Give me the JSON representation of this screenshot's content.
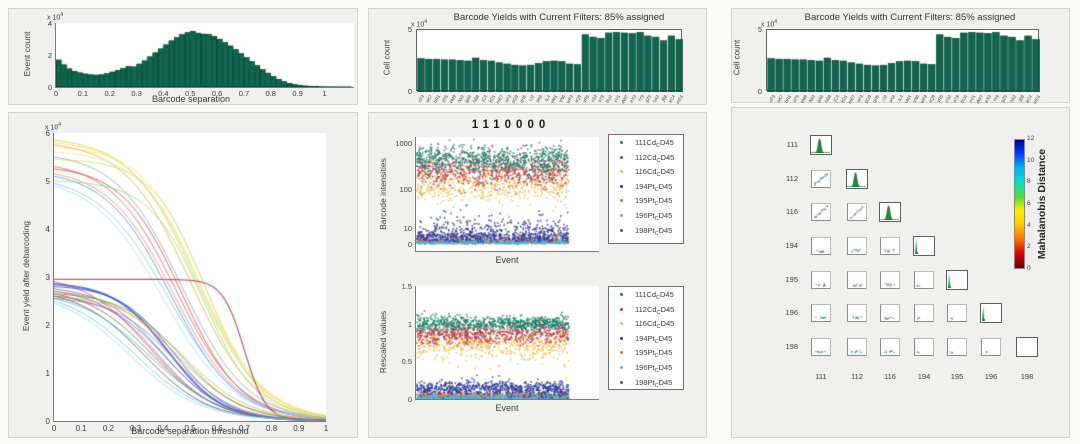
{
  "window": {
    "bg": "#fafaf8",
    "panel_bg": "#f0f0ee",
    "panel_border": "#d2d2cf",
    "bar_color": "#0e6550",
    "bar_edge": "#06352a",
    "text_color": "#3b3b3b"
  },
  "panels": {
    "separation_hist": {
      "ylabel": "Event count",
      "xlabel": "Barcode separation",
      "y_exp": "x 10",
      "y_exp_sup": "4",
      "yticks": [
        "0",
        "2",
        "4"
      ],
      "xticks": [
        "0",
        "0.1",
        "0.2",
        "0.3",
        "0.4",
        "0.5",
        "0.6",
        "0.7",
        "0.8",
        "0.9",
        "1"
      ]
    },
    "yield_curves": {
      "ylabel": "Event yield after debarcoding",
      "xlabel": "Barcode separation threshold",
      "y_exp": "x 10",
      "y_exp_sup": "4",
      "yticks": [
        "0",
        "1",
        "2",
        "3",
        "4",
        "5",
        "6"
      ],
      "xticks": [
        "0",
        "0.1",
        "0.2",
        "0.3",
        "0.4",
        "0.5",
        "0.6",
        "0.7",
        "0.8",
        "0.9",
        "1"
      ]
    },
    "yields_mid": {
      "title": "Barcode Yields with Current Filters: 85% assigned",
      "ylabel": "Cell count",
      "y_exp": "x 10",
      "y_exp_sup": "4",
      "yticks": [
        "0",
        "5"
      ]
    },
    "yields_right": {
      "title": "Barcode Yields with Current Filters: 85% assigned",
      "ylabel": "Cell count",
      "y_exp": "x 10",
      "y_exp_sup": "4",
      "yticks": [
        "0",
        "5"
      ]
    },
    "scatter_panel": {
      "title": "1110000",
      "top": {
        "ylabel": "Barcode intensities",
        "xlabel": "Event",
        "yticks": [
          "0",
          "10",
          "100",
          "1000"
        ]
      },
      "bottom": {
        "ylabel": "Rescaled values",
        "xlabel": "Event",
        "yticks": [
          "0",
          "0.5",
          "1",
          "1.5"
        ]
      }
    },
    "matrix": {
      "colorbar_label": "Mahalanobis Distance",
      "colorbar_ticks": [
        "0",
        "2",
        "4",
        "6",
        "8",
        "10",
        "12"
      ],
      "channel_labels": [
        "111",
        "112",
        "116",
        "194",
        "195",
        "196",
        "198"
      ]
    }
  },
  "legend_items": [
    {
      "pre": "111Cd",
      "sub": "C",
      "post": "D45",
      "color": "#177f6b"
    },
    {
      "pre": "112Cd",
      "sub": "C",
      "post": "D45",
      "color": "#c13a55"
    },
    {
      "pre": "116Cd",
      "sub": "C",
      "post": "D45",
      "color": "#f2bf4e"
    },
    {
      "pre": "194Pt",
      "sub": "C",
      "post": "D45",
      "color": "#2b3a9e"
    },
    {
      "pre": "195Pt",
      "sub": "C",
      "post": "D45",
      "color": "#e0702a"
    },
    {
      "pre": "196Pt",
      "sub": "C",
      "post": "D45",
      "color": "#56b3e2"
    },
    {
      "pre": "198Pt",
      "sub": "C",
      "post": "D45",
      "color": "#555555"
    }
  ],
  "chart_data": [
    {
      "id": "separation_histogram",
      "type": "bar",
      "xlabel": "Barcode separation",
      "ylabel": "Event count",
      "unit": "x10^4",
      "ylim": [
        0,
        4
      ],
      "xlim": [
        0,
        1.11
      ],
      "bin_start": 0,
      "bin_width": 0.02,
      "values": [
        1.7,
        1.4,
        1.15,
        1.0,
        0.9,
        0.83,
        0.78,
        0.76,
        0.78,
        0.85,
        0.95,
        1.05,
        1.18,
        1.3,
        1.27,
        1.45,
        1.65,
        1.9,
        2.15,
        2.4,
        2.65,
        2.9,
        3.1,
        3.3,
        3.42,
        3.5,
        3.38,
        3.32,
        3.3,
        3.18,
        3.0,
        2.8,
        2.58,
        2.35,
        2.1,
        1.85,
        1.6,
        1.35,
        1.1,
        0.88,
        0.68,
        0.5,
        0.36,
        0.25,
        0.17,
        0.12,
        0.08,
        0.05,
        0.04,
        0.03,
        0.02,
        0.02,
        0.015,
        0.01,
        0.01
      ]
    },
    {
      "id": "yield_curves",
      "type": "line",
      "xlabel": "Barcode separation threshold",
      "ylabel": "Event yield after debarcoding",
      "unit": "x10^4",
      "ylim": [
        0,
        6
      ],
      "xlim": [
        0,
        1
      ],
      "grid": false,
      "series": [
        {
          "c": "#e6c53b",
          "y0": 5.85,
          "m": 0.52,
          "w": 0.12
        },
        {
          "c": "#f2d45c",
          "y0": 5.8,
          "m": 0.53,
          "w": 0.12
        },
        {
          "c": "#ffdf74",
          "y0": 5.7,
          "m": 0.55,
          "w": 0.11
        },
        {
          "c": "#d8b02e",
          "y0": 5.75,
          "m": 0.5,
          "w": 0.12
        },
        {
          "c": "#efe193",
          "y0": 5.6,
          "m": 0.54,
          "w": 0.11
        },
        {
          "c": "#c8e06a",
          "y0": 5.45,
          "m": 0.56,
          "w": 0.1
        },
        {
          "c": "#9aa0a6",
          "y0": 5.5,
          "m": 0.47,
          "w": 0.12
        },
        {
          "c": "#e05a4e",
          "y0": 5.3,
          "m": 0.45,
          "w": 0.12
        },
        {
          "c": "#d94040",
          "y0": 5.25,
          "m": 0.47,
          "w": 0.11
        },
        {
          "c": "#f08878",
          "y0": 5.15,
          "m": 0.44,
          "w": 0.12
        },
        {
          "c": "#4f86e0",
          "y0": 5.1,
          "m": 0.43,
          "w": 0.12
        },
        {
          "c": "#7fc4ef",
          "y0": 4.95,
          "m": 0.42,
          "w": 0.13
        },
        {
          "c": "#a8dcf5",
          "y0": 4.9,
          "m": 0.4,
          "w": 0.13
        },
        {
          "c": "#8fd98f",
          "y0": 5.0,
          "m": 0.55,
          "w": 0.1
        },
        {
          "c": "#a03535",
          "y0": 2.95,
          "m": 0.7,
          "w": 0.04,
          "lw": 1.2
        },
        {
          "c": "#e04848",
          "y0": 2.9,
          "m": 0.35,
          "w": 0.12
        },
        {
          "c": "#3a4fd0",
          "y0": 2.85,
          "m": 0.42,
          "w": 0.1,
          "lw": 2
        },
        {
          "c": "#2a3ec0",
          "y0": 2.8,
          "m": 0.44,
          "w": 0.1
        },
        {
          "c": "#5a6ae0",
          "y0": 2.75,
          "m": 0.4,
          "w": 0.11
        },
        {
          "c": "#7a52c0",
          "y0": 2.7,
          "m": 0.38,
          "w": 0.11
        },
        {
          "c": "#8a5a3a",
          "y0": 2.65,
          "m": 0.36,
          "w": 0.12
        },
        {
          "c": "#6b4a30",
          "y0": 2.6,
          "m": 0.33,
          "w": 0.12
        },
        {
          "c": "#e8862a",
          "y0": 2.7,
          "m": 0.45,
          "w": 0.12
        },
        {
          "c": "#f0a050",
          "y0": 2.6,
          "m": 0.48,
          "w": 0.12
        },
        {
          "c": "#35b8d8",
          "y0": 2.55,
          "m": 0.35,
          "w": 0.13
        },
        {
          "c": "#58c8f0",
          "y0": 2.5,
          "m": 0.3,
          "w": 0.13
        },
        {
          "c": "#98d8f8",
          "y0": 2.45,
          "m": 0.28,
          "w": 0.13
        },
        {
          "c": "#4a9a55",
          "y0": 2.65,
          "m": 0.47,
          "w": 0.11
        },
        {
          "c": "#607080",
          "y0": 2.6,
          "m": 0.41,
          "w": 0.11
        },
        {
          "c": "#b07090",
          "y0": 2.55,
          "m": 0.44,
          "w": 0.11
        }
      ]
    },
    {
      "id": "barcode_yields",
      "type": "bar",
      "title": "Barcode Yields with Current Filters: 85% assigned",
      "ylabel": "Cell count",
      "unit": "x10^4",
      "ylim": [
        0,
        5.2
      ],
      "values": [
        2.8,
        2.75,
        2.75,
        2.7,
        2.7,
        2.65,
        2.6,
        2.85,
        2.65,
        2.6,
        2.45,
        2.35,
        2.25,
        2.2,
        2.25,
        2.4,
        2.55,
        2.6,
        2.55,
        2.35,
        2.3,
        4.8,
        4.6,
        4.5,
        4.95,
        5.0,
        4.95,
        4.9,
        5.0,
        4.7,
        4.6,
        4.3,
        4.7,
        4.4
      ],
      "xtick_labels_illegible": true,
      "xtick_labels": [
        "cF3",
        "aK7",
        "bR1",
        "dT5",
        "eM9",
        "fW2",
        "gA6",
        "hB8",
        "jC4",
        "kD1",
        "mE7",
        "nF3",
        "pG9",
        "qH5",
        "rJ2",
        "sK8",
        "tL4",
        "uM1",
        "vN6",
        "wP3",
        "xQ9",
        "yR5",
        "zS2",
        "aT8",
        "bU4",
        "cV1",
        "dW7",
        "eX3",
        "fY9",
        "gZ5",
        "hA2",
        "jB8",
        "kC4",
        "mD1"
      ]
    },
    {
      "id": "intensities_scatter",
      "type": "scatter",
      "title": "1110000",
      "xlabel": "Event",
      "ylabel": "Barcode intensities",
      "yscale": "arcsinh-log",
      "ytick_values": [
        0,
        10,
        100,
        1000
      ],
      "series": [
        {
          "name": "111Cd_CD45",
          "center": 450,
          "sigma": 0.38,
          "n": 700
        },
        {
          "name": "112Cd_CD45",
          "center": 270,
          "sigma": 0.42,
          "n": 650
        },
        {
          "name": "116Cd_CD45",
          "center": 150,
          "sigma": 0.55,
          "n": 650
        },
        {
          "name": "194Pt_CD45",
          "center": 6,
          "sigma": 0.55,
          "n": 700
        },
        {
          "name": "195Pt_CD45",
          "center": 2.2,
          "sigma": 0.6,
          "n": 500
        },
        {
          "name": "196Pt_CD45",
          "center": 1.2,
          "sigma": 0.6,
          "n": 450
        },
        {
          "name": "198Pt_CD45",
          "center": 1.5,
          "sigma": 0.6,
          "n": 250
        }
      ]
    },
    {
      "id": "rescaled_scatter",
      "type": "scatter",
      "xlabel": "Event",
      "ylabel": "Rescaled values",
      "ylim": [
        0,
        1.5
      ],
      "ytick_values": [
        0,
        0.5,
        1,
        1.5
      ],
      "series": [
        {
          "name": "111Cd_CD45",
          "mean": 1.01,
          "sd": 0.05,
          "n": 700
        },
        {
          "name": "112Cd_CD45",
          "mean": 0.88,
          "sd": 0.07,
          "n": 650
        },
        {
          "name": "116Cd_CD45",
          "mean": 0.74,
          "sd": 0.11,
          "n": 650
        },
        {
          "name": "194Pt_CD45",
          "mean": 0.15,
          "sd": 0.05,
          "n": 700
        },
        {
          "name": "195Pt_CD45",
          "mean": 0.06,
          "sd": 0.035,
          "n": 500
        },
        {
          "name": "196Pt_CD45",
          "mean": 0.035,
          "sd": 0.025,
          "n": 450
        },
        {
          "name": "198Pt_CD45",
          "mean": 0.03,
          "sd": 0.02,
          "n": 250
        }
      ]
    },
    {
      "id": "mahalanobis_matrix",
      "type": "heatmap",
      "labels": [
        "111",
        "112",
        "116",
        "194",
        "195",
        "196",
        "198"
      ],
      "colorbar": {
        "label": "Mahalanobis Distance",
        "min": 0,
        "max": 12,
        "colors_bottom_to_top": [
          "#6e0000",
          "#d40000",
          "#ff6a00",
          "#ffc800",
          "#ffee00",
          "#57d63a",
          "#00e0c0",
          "#00b4ff",
          "#0040ff",
          "#000096"
        ]
      },
      "cells": [
        {
          "r": 0,
          "c": 0,
          "kind": "peak"
        },
        {
          "r": 1,
          "c": 0,
          "kind": "slash"
        },
        {
          "r": 1,
          "c": 1,
          "kind": "peak"
        },
        {
          "r": 2,
          "c": 0,
          "kind": "slash"
        },
        {
          "r": 2,
          "c": 1,
          "kind": "slash2"
        },
        {
          "r": 2,
          "c": 2,
          "kind": "peak"
        },
        {
          "r": 3,
          "c": 0,
          "kind": "specks"
        },
        {
          "r": 3,
          "c": 1,
          "kind": "specks"
        },
        {
          "r": 3,
          "c": 2,
          "kind": "specks"
        },
        {
          "r": 3,
          "c": 3,
          "kind": "spike"
        },
        {
          "r": 4,
          "c": 0,
          "kind": "specks"
        },
        {
          "r": 4,
          "c": 1,
          "kind": "specks"
        },
        {
          "r": 4,
          "c": 2,
          "kind": "specks"
        },
        {
          "r": 4,
          "c": 3,
          "kind": "dots"
        },
        {
          "r": 4,
          "c": 4,
          "kind": "spike"
        },
        {
          "r": 5,
          "c": 0,
          "kind": "specks"
        },
        {
          "r": 5,
          "c": 1,
          "kind": "specks"
        },
        {
          "r": 5,
          "c": 2,
          "kind": "specks"
        },
        {
          "r": 5,
          "c": 3,
          "kind": "dots"
        },
        {
          "r": 5,
          "c": 4,
          "kind": "dots"
        },
        {
          "r": 5,
          "c": 5,
          "kind": "spike"
        },
        {
          "r": 6,
          "c": 0,
          "kind": "specks"
        },
        {
          "r": 6,
          "c": 1,
          "kind": "specks"
        },
        {
          "r": 6,
          "c": 2,
          "kind": "specks"
        },
        {
          "r": 6,
          "c": 3,
          "kind": "dots"
        },
        {
          "r": 6,
          "c": 4,
          "kind": "dots"
        },
        {
          "r": 6,
          "c": 5,
          "kind": "dots"
        },
        {
          "r": 6,
          "c": 6,
          "kind": "empty"
        }
      ]
    }
  ]
}
